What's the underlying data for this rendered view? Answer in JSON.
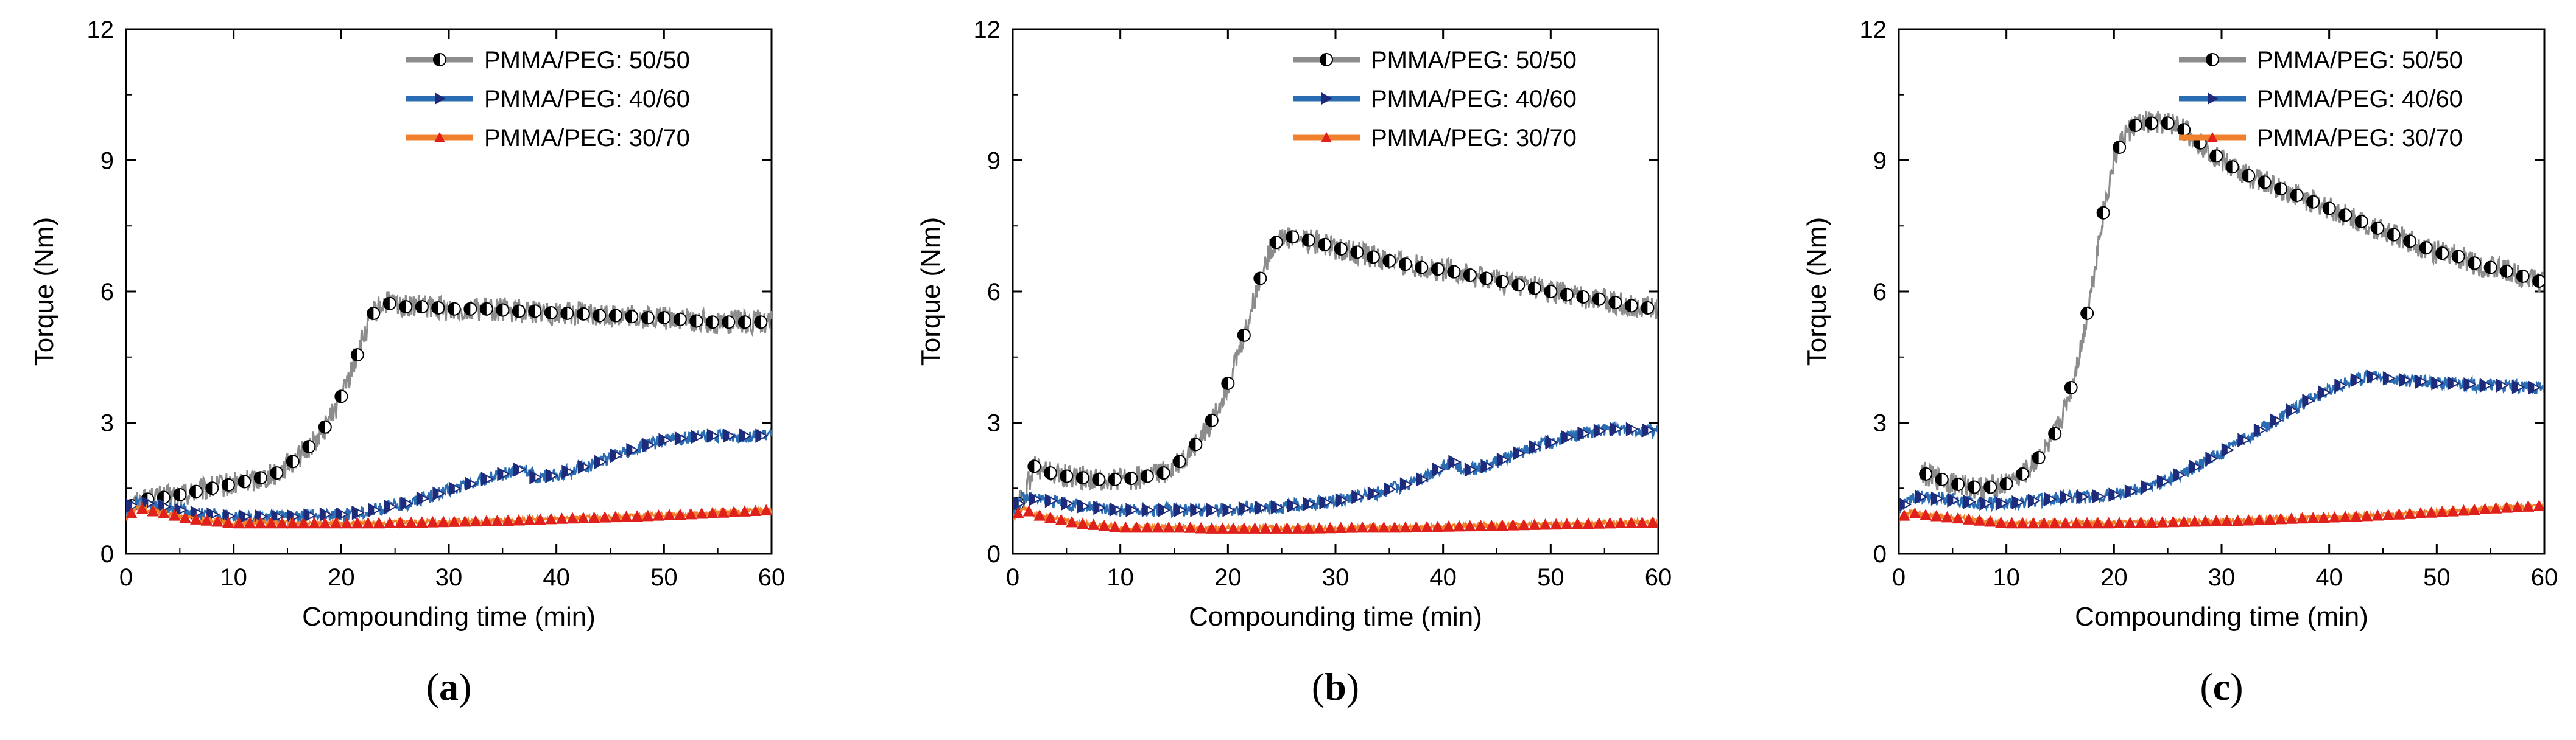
{
  "chart_data": [
    {
      "type": "line",
      "panel_label": "a",
      "xlabel": "Compounding time (min)",
      "ylabel": "Torque (Nm)",
      "xlim": [
        0,
        60
      ],
      "ylim": [
        0,
        12
      ],
      "xticks": [
        0,
        10,
        20,
        30,
        40,
        50,
        60
      ],
      "yticks": [
        0,
        3,
        6,
        9,
        12
      ],
      "legend_position": "top-right",
      "series": [
        {
          "name": "PMMA/PEG: 50/50",
          "color": "#8c8c8c",
          "marker": "half-circle",
          "marker_color": "#000000",
          "x": [
            0,
            1,
            2,
            4,
            6,
            8,
            10,
            12,
            14,
            16,
            18,
            19,
            20,
            21,
            22,
            23,
            24,
            25,
            26,
            28,
            30,
            32,
            34,
            36,
            38,
            40,
            42,
            44,
            46,
            48,
            50,
            52,
            54,
            56,
            58,
            60
          ],
          "values": [
            1.0,
            1.2,
            1.25,
            1.3,
            1.4,
            1.5,
            1.6,
            1.7,
            1.85,
            2.2,
            2.7,
            3.1,
            3.6,
            4.2,
            4.9,
            5.5,
            5.75,
            5.7,
            5.65,
            5.65,
            5.6,
            5.6,
            5.6,
            5.55,
            5.55,
            5.5,
            5.5,
            5.45,
            5.45,
            5.4,
            5.4,
            5.35,
            5.3,
            5.3,
            5.3,
            5.3
          ]
        },
        {
          "name": "PMMA/PEG: 40/60",
          "color": "#2a6db3",
          "marker": "triangle-right",
          "marker_color": "#1e2a7a",
          "x": [
            0,
            1,
            2,
            4,
            6,
            8,
            10,
            12,
            14,
            16,
            18,
            20,
            22,
            24,
            26,
            28,
            30,
            32,
            34,
            36,
            37,
            38,
            40,
            42,
            44,
            46,
            48,
            50,
            52,
            54,
            56,
            58,
            60
          ],
          "values": [
            1.0,
            1.2,
            1.15,
            1.05,
            0.95,
            0.9,
            0.85,
            0.85,
            0.85,
            0.85,
            0.9,
            0.9,
            0.95,
            1.05,
            1.15,
            1.3,
            1.45,
            1.6,
            1.75,
            1.9,
            1.95,
            1.75,
            1.8,
            1.95,
            2.1,
            2.3,
            2.45,
            2.6,
            2.65,
            2.7,
            2.7,
            2.7,
            2.7
          ]
        },
        {
          "name": "PMMA/PEG: 30/70",
          "color": "#f0812c",
          "marker": "triangle-up",
          "marker_color": "#e0201a",
          "x": [
            0,
            1,
            2,
            4,
            6,
            8,
            10,
            12,
            14,
            16,
            18,
            20,
            24,
            28,
            32,
            36,
            40,
            44,
            48,
            52,
            56,
            60
          ],
          "values": [
            0.8,
            1.05,
            1.0,
            0.9,
            0.8,
            0.75,
            0.7,
            0.7,
            0.7,
            0.7,
            0.7,
            0.7,
            0.7,
            0.72,
            0.74,
            0.76,
            0.8,
            0.83,
            0.86,
            0.9,
            0.95,
            1.0
          ]
        }
      ]
    },
    {
      "type": "line",
      "panel_label": "b",
      "xlabel": "Compounding time (min)",
      "ylabel": "Torque (Nm)",
      "xlim": [
        0,
        60
      ],
      "ylim": [
        0,
        12
      ],
      "xticks": [
        0,
        10,
        20,
        30,
        40,
        50,
        60
      ],
      "yticks": [
        0,
        3,
        6,
        9,
        12
      ],
      "legend_position": "top-right",
      "series": [
        {
          "name": "PMMA/PEG: 50/50",
          "color": "#8c8c8c",
          "marker": "half-circle",
          "marker_color": "#000000",
          "x": [
            0,
            1,
            2,
            3,
            4,
            6,
            8,
            10,
            12,
            14,
            16,
            18,
            19,
            20,
            21,
            22,
            23,
            24,
            25,
            26,
            28,
            30,
            32,
            34,
            36,
            38,
            40,
            42,
            44,
            46,
            48,
            50,
            52,
            54,
            56,
            58,
            60
          ],
          "values": [
            1.0,
            1.3,
            2.0,
            1.9,
            1.8,
            1.75,
            1.7,
            1.7,
            1.75,
            1.85,
            2.2,
            2.8,
            3.3,
            3.9,
            4.6,
            5.4,
            6.3,
            7.0,
            7.25,
            7.25,
            7.15,
            7.0,
            6.9,
            6.75,
            6.65,
            6.55,
            6.5,
            6.4,
            6.3,
            6.2,
            6.1,
            6.0,
            5.9,
            5.85,
            5.75,
            5.65,
            5.6
          ]
        },
        {
          "name": "PMMA/PEG: 40/60",
          "color": "#2a6db3",
          "marker": "triangle-right",
          "marker_color": "#1e2a7a",
          "x": [
            0,
            1,
            2,
            4,
            6,
            8,
            10,
            12,
            14,
            16,
            18,
            20,
            22,
            24,
            26,
            28,
            30,
            32,
            34,
            36,
            38,
            40,
            41,
            42,
            44,
            46,
            48,
            50,
            52,
            54,
            56,
            58,
            60
          ],
          "values": [
            1.0,
            1.3,
            1.25,
            1.2,
            1.1,
            1.05,
            1.0,
            1.0,
            1.0,
            1.0,
            1.0,
            1.0,
            1.05,
            1.05,
            1.1,
            1.15,
            1.2,
            1.3,
            1.4,
            1.55,
            1.7,
            2.0,
            2.1,
            1.9,
            2.0,
            2.2,
            2.4,
            2.55,
            2.7,
            2.8,
            2.85,
            2.85,
            2.8
          ]
        },
        {
          "name": "PMMA/PEG: 30/70",
          "color": "#f0812c",
          "marker": "triangle-up",
          "marker_color": "#e0201a",
          "x": [
            0,
            1,
            2,
            4,
            6,
            8,
            10,
            12,
            14,
            16,
            18,
            20,
            24,
            28,
            32,
            36,
            40,
            44,
            48,
            52,
            56,
            60
          ],
          "values": [
            0.8,
            1.05,
            0.9,
            0.8,
            0.7,
            0.65,
            0.6,
            0.6,
            0.6,
            0.6,
            0.58,
            0.58,
            0.58,
            0.58,
            0.6,
            0.6,
            0.62,
            0.64,
            0.66,
            0.68,
            0.7,
            0.72
          ]
        }
      ]
    },
    {
      "type": "line",
      "panel_label": "c",
      "xlabel": "Compounding time (min)",
      "ylabel": "Torque (Nm)",
      "xlim": [
        0,
        60
      ],
      "ylim": [
        0,
        12
      ],
      "xticks": [
        0,
        10,
        20,
        30,
        40,
        50,
        60
      ],
      "yticks": [
        0,
        3,
        6,
        9,
        12
      ],
      "legend_position": "top-right",
      "series": [
        {
          "name": "PMMA/PEG: 50/50",
          "color": "#8c8c8c",
          "marker": "half-circle",
          "marker_color": "#000000",
          "x": [
            2,
            3,
            4,
            6,
            8,
            10,
            12,
            14,
            15,
            16,
            17,
            18,
            19,
            20,
            21,
            22,
            23,
            24,
            25,
            26,
            27,
            28,
            30,
            32,
            34,
            36,
            38,
            40,
            42,
            44,
            46,
            48,
            50,
            52,
            54,
            56,
            58,
            60
          ],
          "values": [
            1.9,
            1.75,
            1.7,
            1.55,
            1.5,
            1.6,
            1.9,
            2.5,
            3.0,
            3.8,
            4.8,
            6.2,
            7.8,
            9.0,
            9.6,
            9.8,
            9.85,
            9.85,
            9.85,
            9.8,
            9.6,
            9.4,
            9.0,
            8.7,
            8.5,
            8.3,
            8.1,
            7.9,
            7.7,
            7.5,
            7.3,
            7.1,
            6.9,
            6.8,
            6.6,
            6.5,
            6.35,
            6.2
          ]
        },
        {
          "name": "PMMA/PEG: 40/60",
          "color": "#2a6db3",
          "marker": "triangle-right",
          "marker_color": "#1e2a7a",
          "x": [
            0,
            1,
            2,
            4,
            6,
            8,
            10,
            12,
            14,
            16,
            18,
            20,
            22,
            24,
            26,
            28,
            30,
            32,
            34,
            36,
            38,
            40,
            42,
            44,
            46,
            48,
            50,
            52,
            54,
            56,
            58,
            60
          ],
          "values": [
            1.0,
            1.25,
            1.3,
            1.25,
            1.2,
            1.15,
            1.15,
            1.2,
            1.25,
            1.3,
            1.3,
            1.35,
            1.45,
            1.6,
            1.8,
            2.05,
            2.3,
            2.6,
            2.9,
            3.2,
            3.5,
            3.75,
            3.95,
            4.05,
            4.0,
            3.95,
            3.9,
            3.9,
            3.85,
            3.85,
            3.8,
            3.8
          ]
        },
        {
          "name": "PMMA/PEG: 30/70",
          "color": "#f0812c",
          "marker": "triangle-up",
          "marker_color": "#e0201a",
          "x": [
            0,
            1,
            2,
            4,
            6,
            8,
            10,
            12,
            14,
            16,
            18,
            20,
            24,
            28,
            32,
            36,
            40,
            44,
            48,
            52,
            56,
            60
          ],
          "values": [
            0.8,
            0.95,
            0.9,
            0.85,
            0.8,
            0.75,
            0.7,
            0.7,
            0.7,
            0.7,
            0.7,
            0.7,
            0.72,
            0.74,
            0.76,
            0.8,
            0.83,
            0.87,
            0.92,
            0.98,
            1.05,
            1.1
          ]
        }
      ]
    }
  ]
}
